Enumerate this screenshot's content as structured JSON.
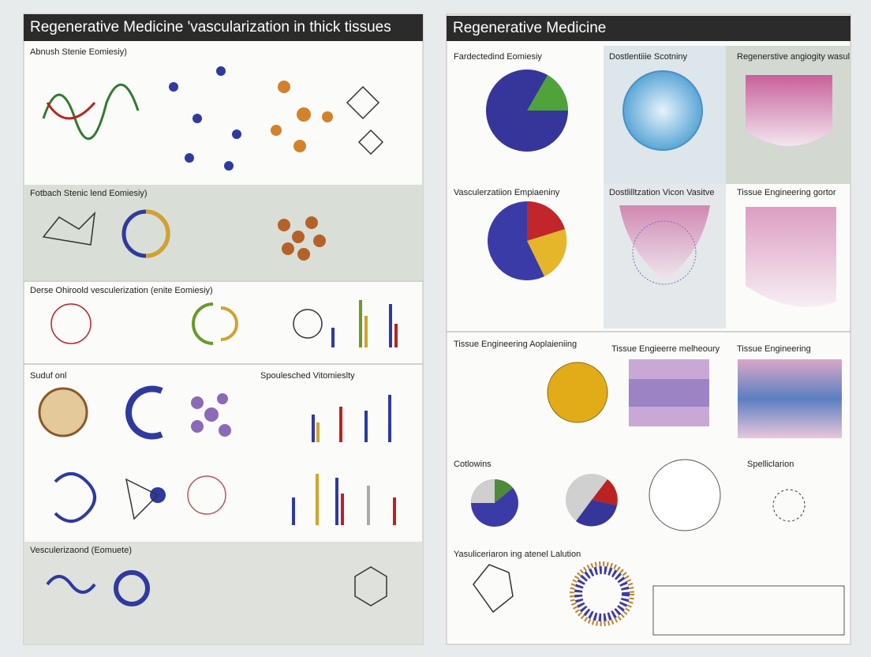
{
  "left": {
    "title": "Regenerative Medicine 'vascularization in thick tissues",
    "sections": [
      "Abnush Stenie Eomiesiy)",
      "Fotbach Stenic lend Eomiesiy)",
      "Derse Ohiroold vesculerization (enite Eomiesiy)",
      "Suduf onl",
      "Spoulesched Vitomieslty",
      "Vesculerizaond (Eomuete)"
    ]
  },
  "right": {
    "title": "Regenerative Medicine",
    "sections": [
      "Fardectedind Eomiesiy",
      "Dostlentiiie Scotniny",
      "Regenerstive angiogity wasul",
      "Vasculerzatiion Empiaeniny",
      "Dostlilltzation Vicon Vasitve",
      "Tissue Engineering gortor",
      "Tissue Engineering Aoplaieniing",
      "Tissue Engieerre melheoury",
      "Tissue Engineering",
      "Cotlowins",
      "Spelliclarion",
      "Yasuliceriaron ing atenel Lalution"
    ]
  }
}
